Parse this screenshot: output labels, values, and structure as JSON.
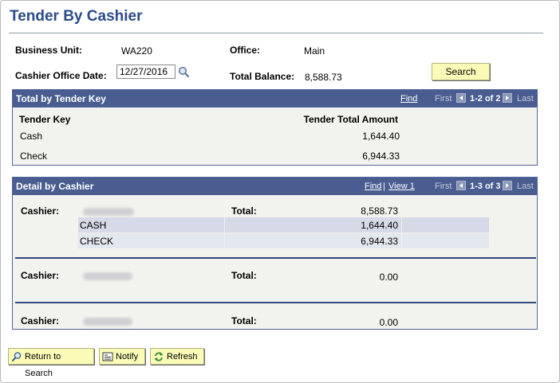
{
  "page": {
    "title": "Tender By Cashier"
  },
  "form": {
    "business_unit_label": "Business Unit:",
    "business_unit_value": "WA220",
    "office_label": "Office:",
    "office_value": "Main",
    "cashier_office_date_label": "Cashier Office Date:",
    "cashier_office_date_value": "12/27/2016",
    "total_balance_label": "Total Balance:",
    "total_balance_value": "8,588.73",
    "search_label": "Search"
  },
  "tender_key_grid": {
    "title": "Total by Tender Key",
    "find": "Find",
    "first": "First",
    "count": "1-2 of 2",
    "last": "Last",
    "col_tender_key": "Tender Key",
    "col_total": "Tender Total Amount",
    "rows": [
      {
        "key": "Cash",
        "amount": "1,644.40"
      },
      {
        "key": "Check",
        "amount": "6,944.33"
      }
    ]
  },
  "cashier_grid": {
    "title": "Detail by Cashier",
    "find": "Find",
    "view": "View 1",
    "first": "First",
    "count": "1-3 of 3",
    "last": "Last",
    "cashier_label": "Cashier:",
    "total_label": "Total:",
    "cashiers": [
      {
        "total": "8,588.73",
        "tenders": [
          {
            "type": "CASH",
            "amount": "1,644.40"
          },
          {
            "type": "CHECK",
            "amount": "6,944.33"
          }
        ]
      },
      {
        "total": "0.00"
      },
      {
        "total": "0.00"
      }
    ]
  },
  "buttons": {
    "return_to_search": "Return to Search",
    "notify": "Notify",
    "refresh": "Refresh"
  },
  "colors": {
    "title": "#2a4b8b",
    "grid_header": "#4a5d91",
    "button_bg": "#fbfbb8"
  }
}
